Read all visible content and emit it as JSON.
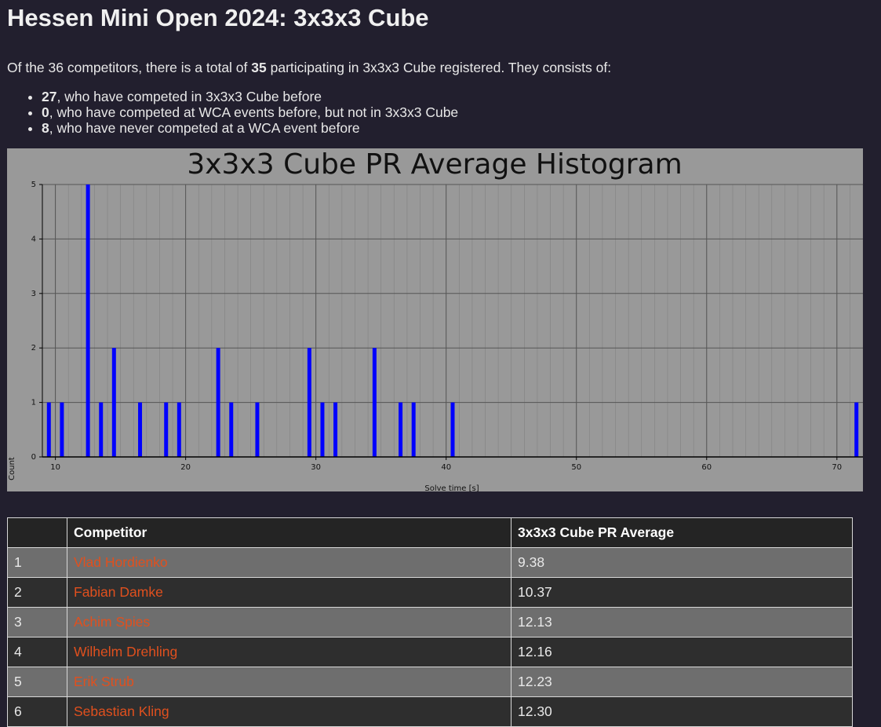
{
  "page": {
    "title": "Hessen Mini Open 2024: 3x3x3 Cube",
    "summary_prefix": "Of the 36 competitors, there is a total of ",
    "summary_count": "35",
    "summary_suffix": " participating in 3x3x3 Cube registered. They consists of:",
    "breakdown": [
      {
        "count": "27",
        "text": ", who have competed in 3x3x3 Cube before"
      },
      {
        "count": "0",
        "text": ", who have competed at WCA events before, but not in 3x3x3 Cube"
      },
      {
        "count": "8",
        "text": ", who have never competed at a WCA event before"
      }
    ]
  },
  "chart_data": {
    "type": "bar",
    "title": "3x3x3 Cube PR Average Histogram",
    "xlabel": "Solve time [s]",
    "ylabel": "Count",
    "xlim": [
      9,
      72
    ],
    "ylim": [
      0,
      5
    ],
    "xticks": [
      10,
      20,
      30,
      40,
      50,
      60,
      70
    ],
    "yticks": [
      0,
      1,
      2,
      3,
      4,
      5
    ],
    "grid": true,
    "bar_color": "#0000ff",
    "background": "#999999",
    "x": [
      9,
      10,
      12,
      13,
      14,
      16,
      18,
      19,
      22,
      23,
      25,
      29,
      30,
      31,
      34,
      36,
      37,
      40,
      71
    ],
    "values": [
      1,
      1,
      5,
      1,
      2,
      1,
      1,
      1,
      2,
      1,
      1,
      2,
      1,
      1,
      2,
      1,
      1,
      1,
      1
    ]
  },
  "table": {
    "headers": [
      "",
      "Competitor",
      "3x3x3 Cube PR Average"
    ],
    "rows": [
      {
        "rank": "1",
        "name": "Vlad Hordienko",
        "avg": "9.38"
      },
      {
        "rank": "2",
        "name": "Fabian Damke",
        "avg": "10.37"
      },
      {
        "rank": "3",
        "name": "Achim Spies",
        "avg": "12.13"
      },
      {
        "rank": "4",
        "name": "Wilhelm Drehling",
        "avg": "12.16"
      },
      {
        "rank": "5",
        "name": "Erik Strub",
        "avg": "12.23"
      },
      {
        "rank": "6",
        "name": "Sebastian Kling",
        "avg": "12.30"
      }
    ]
  },
  "colors": {
    "background": "#221f2e",
    "link": "#e0501e"
  }
}
